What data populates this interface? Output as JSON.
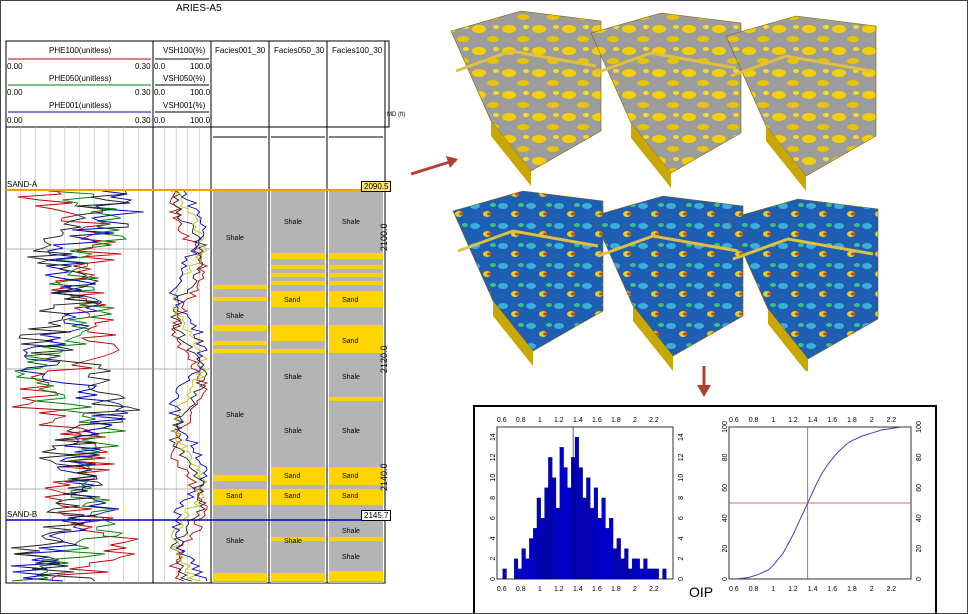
{
  "well": {
    "title": "ARIES-A5",
    "md_label": "MD (ft)",
    "tracks": {
      "phe": [
        {
          "name": "PHE100(unitless)",
          "min": "0.00",
          "max": "0.30",
          "color": "#c00000"
        },
        {
          "name": "PHE050(unitless)",
          "min": "0.00",
          "max": "0.30",
          "color": "#008000"
        },
        {
          "name": "PHE001(unitless)",
          "min": "0.00",
          "max": "0.30",
          "color": "#0000c0"
        }
      ],
      "vsh": [
        {
          "name": "VSH100(%)",
          "min": "0.0",
          "max": "100.0"
        },
        {
          "name": "VSH050(%)",
          "min": "0.0",
          "max": "100.0"
        },
        {
          "name": "VSH001(%)",
          "min": "0.0",
          "max": "100.0"
        }
      ],
      "facies": [
        "Facies001_30",
        "Facies050_30",
        "Facies100_30"
      ]
    },
    "markers": [
      {
        "name": "SAND-A",
        "depth": "2090.5",
        "color": "#f2a000"
      },
      {
        "name": "SAND-B",
        "depth": "2145.7",
        "color": "#0000c0"
      }
    ],
    "depth_ticks": [
      "2100.0",
      "2120.0",
      "2140.0"
    ],
    "facies_labels": {
      "shale": "Shale",
      "sand": "Sand"
    },
    "colors": {
      "shale": "#b4b4b4",
      "sand": "#ffd400"
    }
  },
  "models": {
    "top_caption": "",
    "colors": {
      "gray_model": "#a8a8a8",
      "yellow": "#f5d000",
      "blue_model": "#1e5fb4"
    }
  },
  "oip": {
    "label": "OIP",
    "chart_data": [
      {
        "type": "bar",
        "title": "",
        "xlim": [
          0.55,
          2.4
        ],
        "ylim": [
          0,
          15
        ],
        "x_ticks": [
          "0.6",
          "0.8",
          "1",
          "1.2",
          "1.4",
          "1.6",
          "1.8",
          "2",
          "2.2"
        ],
        "y_ticks": [
          "0",
          "2",
          "4",
          "6",
          "8",
          "10",
          "12",
          "14"
        ],
        "x": [
          0.63,
          0.75,
          0.79,
          0.83,
          0.87,
          0.91,
          0.95,
          0.99,
          1.03,
          1.07,
          1.11,
          1.15,
          1.19,
          1.23,
          1.27,
          1.31,
          1.35,
          1.39,
          1.43,
          1.47,
          1.51,
          1.55,
          1.59,
          1.63,
          1.67,
          1.71,
          1.75,
          1.79,
          1.83,
          1.87,
          1.91,
          1.95,
          1.99,
          2.03,
          2.07,
          2.11,
          2.15,
          2.19,
          2.23,
          2.31
        ],
        "values": [
          1,
          2,
          1,
          3,
          2,
          4,
          5,
          8,
          6,
          9,
          12,
          10,
          7,
          13,
          11,
          9,
          12,
          14,
          11,
          8,
          10,
          7,
          9,
          6,
          8,
          5,
          6,
          3,
          4,
          2,
          3,
          1,
          2,
          2,
          1,
          2,
          1,
          1,
          1,
          1
        ],
        "bar_color": "#0000c8",
        "reference_x": 1.35
      },
      {
        "type": "line",
        "title": "",
        "xlim": [
          0.55,
          2.4
        ],
        "ylim": [
          0,
          100
        ],
        "x_ticks": [
          "0.6",
          "0.8",
          "1",
          "1.2",
          "1.4",
          "1.6",
          "1.8",
          "2",
          "2.2"
        ],
        "y_ticks": [
          "0",
          "20",
          "40",
          "60",
          "80",
          "100"
        ],
        "series": [
          {
            "x": [
              0.62,
              0.75,
              0.85,
              0.95,
              1.0,
              1.05,
              1.1,
              1.15,
              1.2,
              1.25,
              1.3,
              1.35,
              1.4,
              1.45,
              1.5,
              1.55,
              1.6,
              1.65,
              1.7,
              1.75,
              1.8,
              1.9,
              2.0,
              2.1,
              2.2,
              2.31
            ],
            "y": [
              0,
              1,
              3,
              6,
              9,
              13,
              17,
              23,
              29,
              36,
              43,
              50,
              57,
              64,
              70,
              75,
              79,
              83,
              86,
              89,
              91,
              94,
              96,
              98,
              99,
              100
            ],
            "color": "#4040c0"
          }
        ],
        "reference_x": 1.35,
        "reference_y": 50,
        "reference_color": "#c04040"
      }
    ]
  }
}
